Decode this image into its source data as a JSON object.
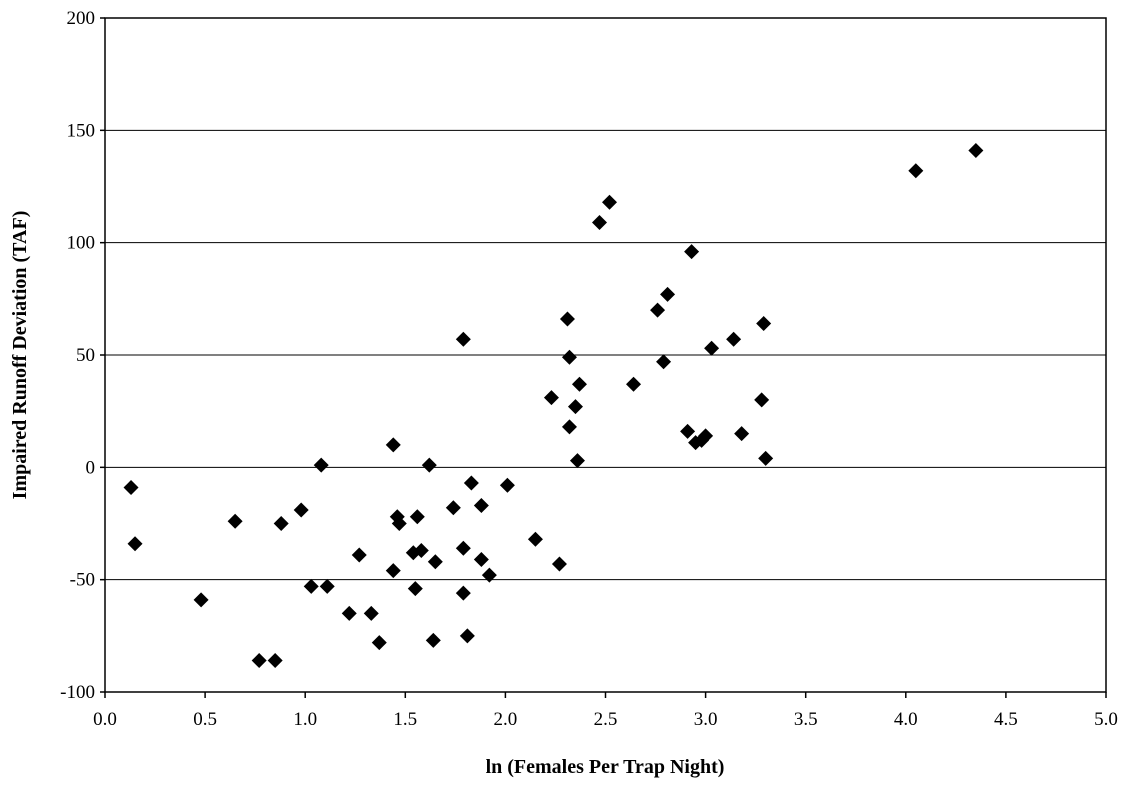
{
  "chart_data": {
    "type": "scatter",
    "title": "",
    "xlabel": "ln (Females Per Trap Night)",
    "ylabel": "Impaired Runoff Deviation (TAF)",
    "xlim": [
      0.0,
      5.0
    ],
    "ylim": [
      -100,
      200
    ],
    "x_ticks": [
      "0.0",
      "0.5",
      "1.0",
      "1.5",
      "2.0",
      "2.5",
      "3.0",
      "3.5",
      "4.0",
      "4.5",
      "5.0"
    ],
    "y_ticks": [
      "-100",
      "-50",
      "0",
      "50",
      "100",
      "150",
      "200"
    ],
    "grid": "horizontal",
    "legend": "none",
    "marker": "diamond",
    "marker_color": "#000000",
    "points": [
      {
        "x": 0.13,
        "y": -9
      },
      {
        "x": 0.15,
        "y": -34
      },
      {
        "x": 0.48,
        "y": -59
      },
      {
        "x": 0.65,
        "y": -24
      },
      {
        "x": 0.77,
        "y": -86
      },
      {
        "x": 0.85,
        "y": -86
      },
      {
        "x": 0.88,
        "y": -25
      },
      {
        "x": 0.98,
        "y": -19
      },
      {
        "x": 1.03,
        "y": -53
      },
      {
        "x": 1.08,
        "y": 1
      },
      {
        "x": 1.11,
        "y": -53
      },
      {
        "x": 1.22,
        "y": -65
      },
      {
        "x": 1.27,
        "y": -39
      },
      {
        "x": 1.33,
        "y": -65
      },
      {
        "x": 1.37,
        "y": -78
      },
      {
        "x": 1.44,
        "y": 10
      },
      {
        "x": 1.44,
        "y": -46
      },
      {
        "x": 1.46,
        "y": -22
      },
      {
        "x": 1.47,
        "y": -25
      },
      {
        "x": 1.54,
        "y": -38
      },
      {
        "x": 1.55,
        "y": -54
      },
      {
        "x": 1.56,
        "y": -22
      },
      {
        "x": 1.58,
        "y": -37
      },
      {
        "x": 1.62,
        "y": 1
      },
      {
        "x": 1.64,
        "y": -77
      },
      {
        "x": 1.65,
        "y": -42
      },
      {
        "x": 1.74,
        "y": -18
      },
      {
        "x": 1.79,
        "y": 57
      },
      {
        "x": 1.79,
        "y": -36
      },
      {
        "x": 1.79,
        "y": -56
      },
      {
        "x": 1.81,
        "y": -75
      },
      {
        "x": 1.83,
        "y": -7
      },
      {
        "x": 1.88,
        "y": -17
      },
      {
        "x": 1.88,
        "y": -41
      },
      {
        "x": 1.92,
        "y": -48
      },
      {
        "x": 2.01,
        "y": -8
      },
      {
        "x": 2.15,
        "y": -32
      },
      {
        "x": 2.23,
        "y": 31
      },
      {
        "x": 2.27,
        "y": -43
      },
      {
        "x": 2.31,
        "y": 66
      },
      {
        "x": 2.32,
        "y": 49
      },
      {
        "x": 2.32,
        "y": 18
      },
      {
        "x": 2.35,
        "y": 27
      },
      {
        "x": 2.36,
        "y": 3
      },
      {
        "x": 2.37,
        "y": 37
      },
      {
        "x": 2.47,
        "y": 109
      },
      {
        "x": 2.52,
        "y": 118
      },
      {
        "x": 2.64,
        "y": 37
      },
      {
        "x": 2.76,
        "y": 70
      },
      {
        "x": 2.79,
        "y": 47
      },
      {
        "x": 2.81,
        "y": 77
      },
      {
        "x": 2.91,
        "y": 16
      },
      {
        "x": 2.93,
        "y": 96
      },
      {
        "x": 2.95,
        "y": 11
      },
      {
        "x": 2.98,
        "y": 12
      },
      {
        "x": 3.0,
        "y": 14
      },
      {
        "x": 3.03,
        "y": 53
      },
      {
        "x": 3.14,
        "y": 57
      },
      {
        "x": 3.18,
        "y": 15
      },
      {
        "x": 3.28,
        "y": 30
      },
      {
        "x": 3.29,
        "y": 64
      },
      {
        "x": 3.3,
        "y": 4
      },
      {
        "x": 4.05,
        "y": 132
      },
      {
        "x": 4.35,
        "y": 141
      }
    ]
  }
}
